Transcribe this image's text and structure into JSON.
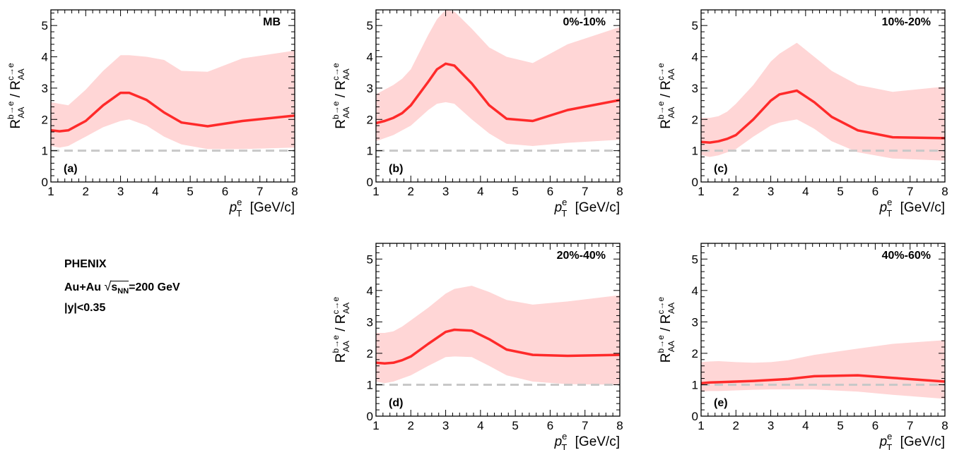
{
  "collaboration": "PHENIX",
  "system": {
    "collision": "Au+Au",
    "energy_symbol": "s",
    "energy_subscript": "NN",
    "energy_value": "=200 GeV"
  },
  "rapidity_cut": "|y|<0.35",
  "colors": {
    "line": "#ff2a2a",
    "band": "#ffd6d6",
    "reference_line": "#c8c8c8",
    "axes": "#000000"
  },
  "chart_data": [
    {
      "type": "line",
      "panel_label": "(a)",
      "title": "MB",
      "ylabel": "R_AA^{b→e} / R_AA^{c→e}",
      "xlabel": "p_T^e [GeV/c]",
      "xlim": [
        1,
        8
      ],
      "ylim": [
        0,
        5.5
      ],
      "xticks": [
        "1",
        "2",
        "3",
        "4",
        "5",
        "6",
        "7",
        "8"
      ],
      "yticks": [
        "0",
        "1",
        "2",
        "3",
        "4",
        "5"
      ],
      "reference_y": 1,
      "series": [
        {
          "x": [
            1.0,
            1.25,
            1.5,
            1.75,
            2.0,
            2.5,
            3.0,
            3.25,
            3.75,
            4.25,
            4.75,
            5.5,
            6.5,
            8.0
          ],
          "y": [
            1.65,
            1.62,
            1.65,
            1.8,
            1.95,
            2.45,
            2.85,
            2.85,
            2.62,
            2.22,
            1.9,
            1.78,
            1.95,
            2.12
          ],
          "y_low": [
            1.15,
            1.1,
            1.15,
            1.3,
            1.45,
            1.75,
            1.95,
            2.0,
            1.8,
            1.45,
            1.2,
            1.05,
            1.05,
            1.1
          ],
          "y_high": [
            2.55,
            2.5,
            2.45,
            2.7,
            2.95,
            3.55,
            4.05,
            4.05,
            4.0,
            3.9,
            3.55,
            3.52,
            3.95,
            4.2
          ]
        }
      ]
    },
    {
      "type": "line",
      "panel_label": "(b)",
      "title": "0%-10%",
      "ylabel": "R_AA^{b→e} / R_AA^{c→e}",
      "xlabel": "p_T^e [GeV/c]",
      "xlim": [
        1,
        8
      ],
      "ylim": [
        0,
        5.5
      ],
      "xticks": [
        "1",
        "2",
        "3",
        "4",
        "5",
        "6",
        "7",
        "8"
      ],
      "yticks": [
        "0",
        "1",
        "2",
        "3",
        "4",
        "5"
      ],
      "reference_y": 1,
      "series": [
        {
          "x": [
            1.0,
            1.25,
            1.5,
            1.75,
            2.0,
            2.5,
            2.75,
            3.0,
            3.25,
            3.75,
            4.25,
            4.75,
            5.5,
            6.5,
            8.0
          ],
          "y": [
            1.88,
            1.95,
            2.05,
            2.2,
            2.45,
            3.2,
            3.6,
            3.78,
            3.72,
            3.15,
            2.45,
            2.02,
            1.95,
            2.3,
            2.62
          ],
          "y_low": [
            1.3,
            1.4,
            1.5,
            1.65,
            1.8,
            2.3,
            2.5,
            2.55,
            2.5,
            2.0,
            1.55,
            1.22,
            1.15,
            1.25,
            1.35
          ],
          "y_high": [
            2.8,
            2.95,
            3.1,
            3.3,
            3.6,
            4.7,
            5.2,
            5.5,
            5.45,
            4.9,
            4.3,
            4.0,
            3.8,
            4.4,
            4.95
          ]
        }
      ]
    },
    {
      "type": "line",
      "panel_label": "(c)",
      "title": "10%-20%",
      "ylabel": "R_AA^{b→e} / R_AA^{c→e}",
      "xlabel": "p_T^e [GeV/c]",
      "xlim": [
        1,
        8
      ],
      "ylim": [
        0,
        5.5
      ],
      "xticks": [
        "1",
        "2",
        "3",
        "4",
        "5",
        "6",
        "7",
        "8"
      ],
      "yticks": [
        "0",
        "1",
        "2",
        "3",
        "4",
        "5"
      ],
      "reference_y": 1,
      "series": [
        {
          "x": [
            1.0,
            1.25,
            1.5,
            1.75,
            2.0,
            2.5,
            3.0,
            3.25,
            3.75,
            4.25,
            4.75,
            5.5,
            6.5,
            8.0
          ],
          "y": [
            1.28,
            1.26,
            1.3,
            1.38,
            1.5,
            2.0,
            2.6,
            2.8,
            2.92,
            2.55,
            2.08,
            1.65,
            1.43,
            1.4
          ],
          "y_low": [
            0.85,
            0.8,
            0.85,
            0.95,
            1.05,
            1.45,
            1.8,
            1.9,
            2.0,
            1.7,
            1.3,
            0.95,
            0.75,
            0.68
          ],
          "y_high": [
            2.05,
            2.05,
            2.1,
            2.25,
            2.5,
            3.1,
            3.85,
            4.1,
            4.45,
            4.0,
            3.55,
            3.1,
            2.88,
            3.05
          ]
        }
      ]
    },
    {
      "type": "line",
      "panel_label": "(d)",
      "title": "20%-40%",
      "ylabel": "R_AA^{b→e} / R_AA^{c→e}",
      "xlabel": "p_T^e [GeV/c]",
      "xlim": [
        1,
        8
      ],
      "ylim": [
        0,
        5.5
      ],
      "xticks": [
        "1",
        "2",
        "3",
        "4",
        "5",
        "6",
        "7",
        "8"
      ],
      "yticks": [
        "0",
        "1",
        "2",
        "3",
        "4",
        "5"
      ],
      "reference_y": 1,
      "series": [
        {
          "x": [
            1.0,
            1.25,
            1.5,
            1.75,
            2.0,
            2.5,
            3.0,
            3.25,
            3.75,
            4.25,
            4.75,
            5.5,
            6.5,
            8.0
          ],
          "y": [
            1.7,
            1.68,
            1.7,
            1.78,
            1.9,
            2.3,
            2.68,
            2.75,
            2.72,
            2.45,
            2.12,
            1.95,
            1.92,
            1.95
          ],
          "y_low": [
            1.1,
            1.05,
            1.1,
            1.2,
            1.3,
            1.6,
            1.88,
            1.9,
            1.88,
            1.6,
            1.3,
            1.1,
            1.02,
            1.0
          ],
          "y_high": [
            2.65,
            2.65,
            2.7,
            2.85,
            3.05,
            3.45,
            3.9,
            4.05,
            4.15,
            3.95,
            3.7,
            3.55,
            3.65,
            3.85
          ]
        }
      ]
    },
    {
      "type": "line",
      "panel_label": "(e)",
      "title": "40%-60%",
      "ylabel": "R_AA^{b→e} / R_AA^{c→e}",
      "xlabel": "p_T^e [GeV/c]",
      "xlim": [
        1,
        8
      ],
      "ylim": [
        0,
        5.5
      ],
      "xticks": [
        "1",
        "2",
        "3",
        "4",
        "5",
        "6",
        "7",
        "8"
      ],
      "yticks": [
        "0",
        "1",
        "2",
        "3",
        "4",
        "5"
      ],
      "reference_y": 1,
      "series": [
        {
          "x": [
            1.0,
            1.25,
            1.5,
            2.0,
            2.5,
            3.0,
            3.5,
            4.25,
            5.5,
            6.5,
            8.0
          ],
          "y": [
            1.05,
            1.07,
            1.08,
            1.1,
            1.12,
            1.15,
            1.18,
            1.27,
            1.3,
            1.22,
            1.1
          ],
          "y_low": [
            0.78,
            0.8,
            0.8,
            0.82,
            0.84,
            0.85,
            0.85,
            0.85,
            0.78,
            0.68,
            0.55
          ],
          "y_high": [
            1.72,
            1.74,
            1.75,
            1.72,
            1.7,
            1.72,
            1.78,
            1.95,
            2.15,
            2.3,
            2.42
          ]
        }
      ]
    }
  ]
}
